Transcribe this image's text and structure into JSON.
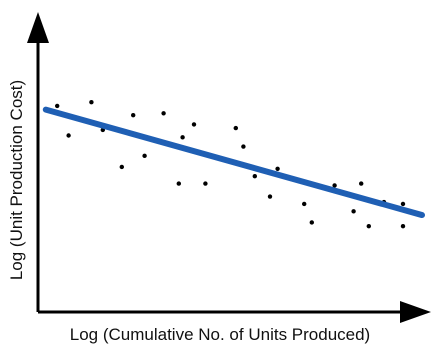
{
  "chart_data": {
    "type": "scatter",
    "title": "",
    "xlabel": "Log (Cumulative No. of Units Produced)",
    "ylabel": "Log (Unit Production Cost)",
    "x_ticks_shown": false,
    "y_ticks_shown": false,
    "grid": false,
    "xlim": [
      0,
      100
    ],
    "ylim": [
      0,
      100
    ],
    "points": [
      {
        "x": 4,
        "y": 86
      },
      {
        "x": 7,
        "y": 70
      },
      {
        "x": 13,
        "y": 88
      },
      {
        "x": 16,
        "y": 73
      },
      {
        "x": 21,
        "y": 53
      },
      {
        "x": 24,
        "y": 81
      },
      {
        "x": 27,
        "y": 59
      },
      {
        "x": 32,
        "y": 82
      },
      {
        "x": 36,
        "y": 44
      },
      {
        "x": 37,
        "y": 69
      },
      {
        "x": 40,
        "y": 76
      },
      {
        "x": 43,
        "y": 44
      },
      {
        "x": 51,
        "y": 74
      },
      {
        "x": 53,
        "y": 64
      },
      {
        "x": 56,
        "y": 48
      },
      {
        "x": 60,
        "y": 37
      },
      {
        "x": 62,
        "y": 52
      },
      {
        "x": 69,
        "y": 33
      },
      {
        "x": 71,
        "y": 23
      },
      {
        "x": 77,
        "y": 43
      },
      {
        "x": 82,
        "y": 29
      },
      {
        "x": 84,
        "y": 44
      },
      {
        "x": 86,
        "y": 21
      },
      {
        "x": 90,
        "y": 34
      },
      {
        "x": 95,
        "y": 33
      },
      {
        "x": 95,
        "y": 21
      }
    ],
    "trendline": {
      "x": [
        1,
        100
      ],
      "y": [
        84,
        27
      ]
    },
    "colors": {
      "points": "#000000",
      "trendline": "#1f5fb4",
      "axes": "#000000"
    }
  }
}
